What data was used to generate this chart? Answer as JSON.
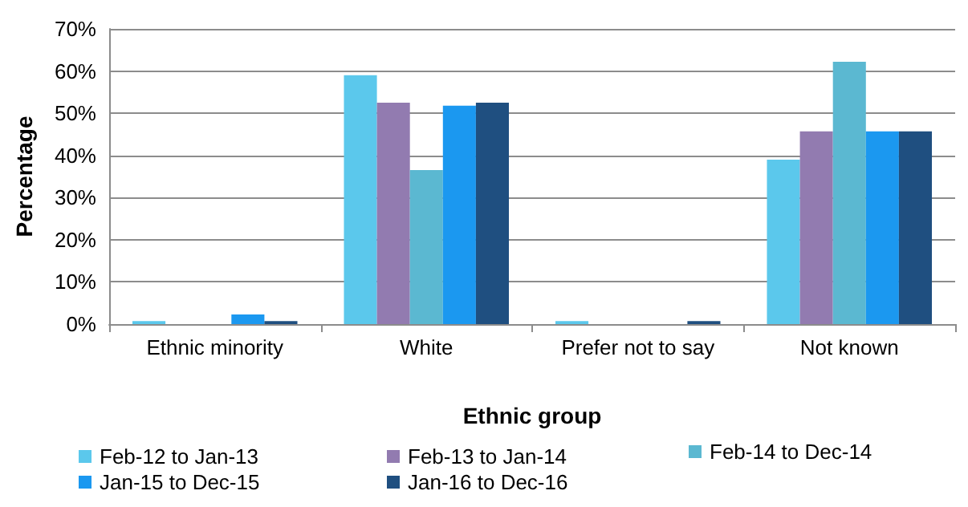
{
  "chart_data": {
    "type": "bar",
    "xlabel": "Ethnic group",
    "ylabel": "Percentage",
    "categories": [
      "Ethnic minority",
      "White",
      "Prefer not to say",
      "Not known"
    ],
    "series": [
      {
        "name": "Feb-12 to Jan-13",
        "color": "#5bc8ec",
        "values": [
          0.7,
          59.0,
          0.7,
          39.0
        ]
      },
      {
        "name": "Feb-13 to Jan-14",
        "color": "#927bb0",
        "values": [
          0,
          52.5,
          0,
          45.7
        ]
      },
      {
        "name": "Feb-14 to Dec-14",
        "color": "#5bb8d1",
        "values": [
          0,
          36.5,
          0,
          62.2
        ]
      },
      {
        "name": "Jan-15 to Dec-15",
        "color": "#1b98f0",
        "values": [
          2.3,
          51.8,
          0,
          45.7
        ]
      },
      {
        "name": "Jan-16 to Dec-16",
        "color": "#1f4f80",
        "values": [
          0.7,
          52.5,
          0.7,
          45.7
        ]
      }
    ],
    "ylim": [
      0,
      70
    ],
    "yticks": [
      {
        "value": 0,
        "label": "0%"
      },
      {
        "value": 10,
        "label": "10%"
      },
      {
        "value": 20,
        "label": "20%"
      },
      {
        "value": 30,
        "label": "30%"
      },
      {
        "value": 40,
        "label": "40%"
      },
      {
        "value": 50,
        "label": "50%"
      },
      {
        "value": 60,
        "label": "60%"
      },
      {
        "value": 70,
        "label": "70%"
      }
    ],
    "grid": "y",
    "legend": "bottom"
  }
}
